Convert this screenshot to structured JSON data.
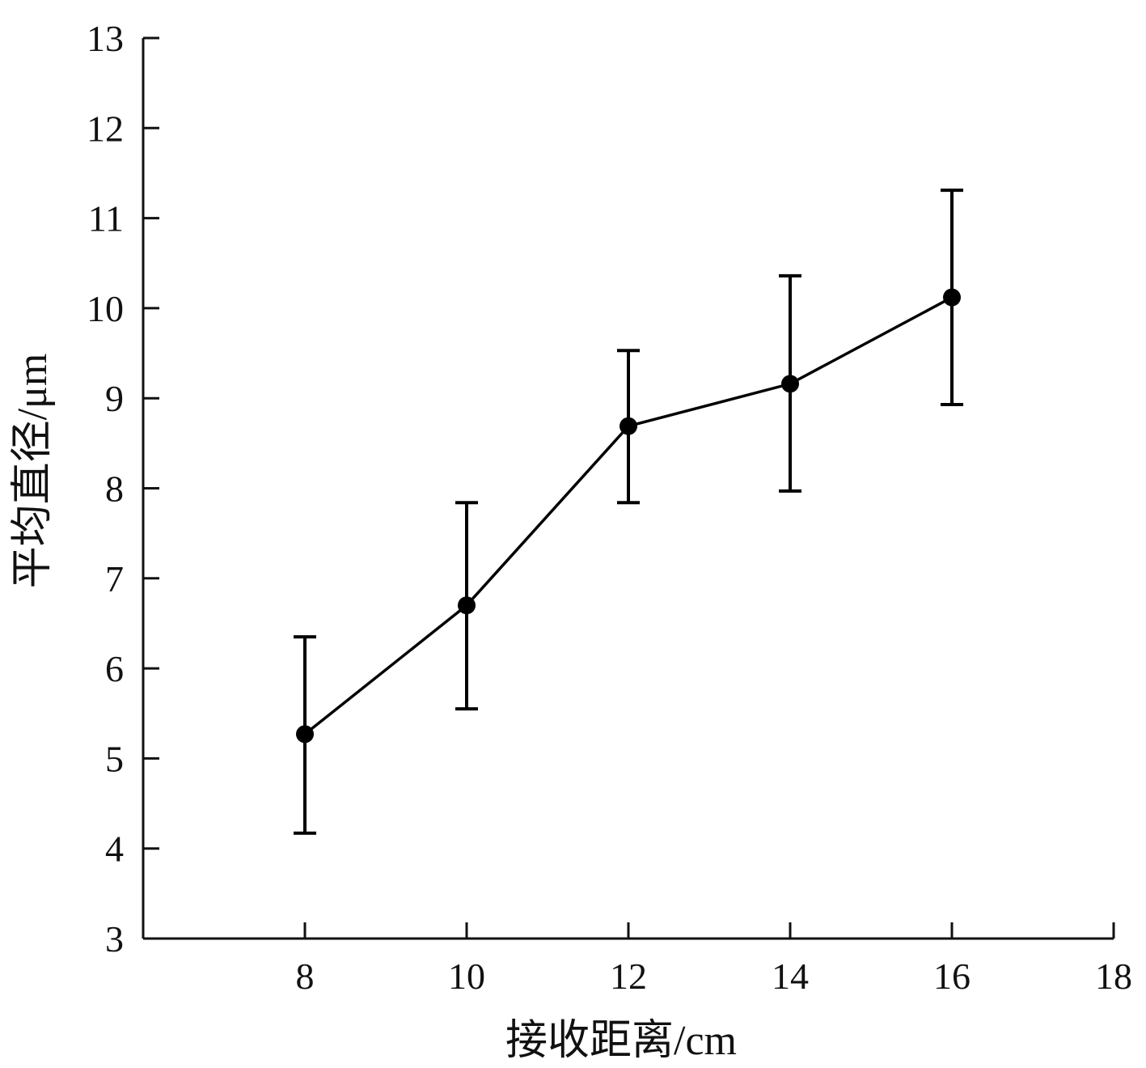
{
  "chart_data": {
    "type": "line",
    "title": "",
    "xlabel": "接收距离/cm",
    "ylabel": "平均直径/μm",
    "xlim": [
      6,
      18
    ],
    "ylim": [
      3,
      13
    ],
    "x_ticks": [
      8,
      10,
      12,
      14,
      16,
      18
    ],
    "y_ticks": [
      3,
      4,
      5,
      6,
      7,
      8,
      9,
      10,
      11,
      12,
      13
    ],
    "grid": false,
    "legend": "none",
    "series": [
      {
        "x": [
          8,
          10,
          12,
          14,
          16
        ],
        "y": [
          5.27,
          6.7,
          8.69,
          9.16,
          10.12
        ],
        "error_lower": [
          4.17,
          5.55,
          7.84,
          7.97,
          8.93
        ],
        "error_upper": [
          6.35,
          7.84,
          9.53,
          10.36,
          11.31
        ],
        "marker": "filled-circle",
        "color": "#000000"
      }
    ]
  }
}
